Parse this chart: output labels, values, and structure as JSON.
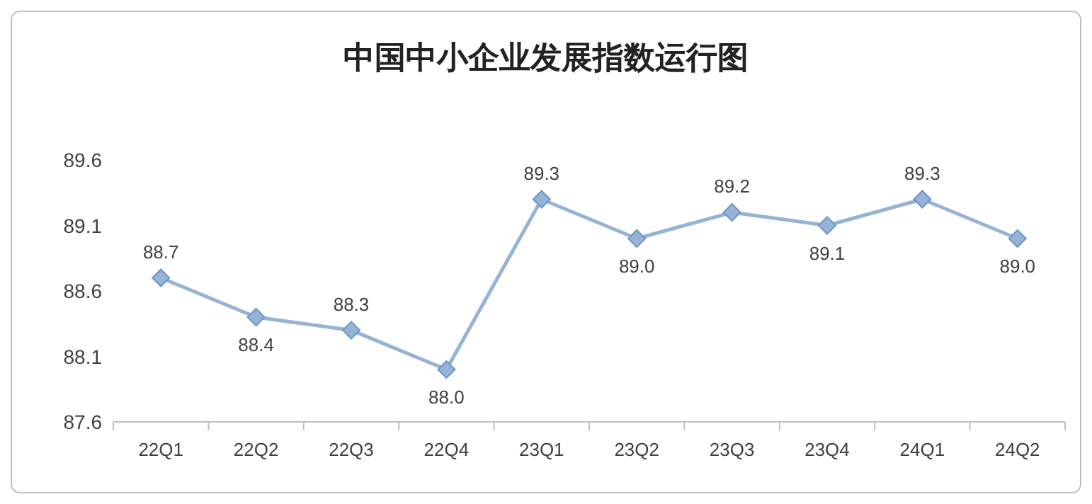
{
  "chart_data": {
    "type": "line",
    "title": "中国中小企业发展指数运行图",
    "categories": [
      "22Q1",
      "22Q2",
      "22Q3",
      "22Q4",
      "23Q1",
      "23Q2",
      "23Q3",
      "23Q4",
      "24Q1",
      "24Q2"
    ],
    "series": [
      {
        "color": "#95b3d7",
        "values": [
          88.7,
          88.4,
          88.3,
          88.0,
          89.3,
          89.0,
          89.2,
          89.1,
          89.3,
          89.0
        ],
        "value_labels": [
          "88.7",
          "88.4",
          "88.3",
          "88.0",
          "89.3",
          "89.0",
          "89.2",
          "89.1",
          "89.3",
          "89.0"
        ]
      }
    ],
    "ylim": [
      87.6,
      89.6
    ],
    "yticks": [
      87.6,
      88.1,
      88.6,
      89.1,
      89.6
    ],
    "marker": "diamond",
    "line_style": "solid",
    "grid": false
  }
}
